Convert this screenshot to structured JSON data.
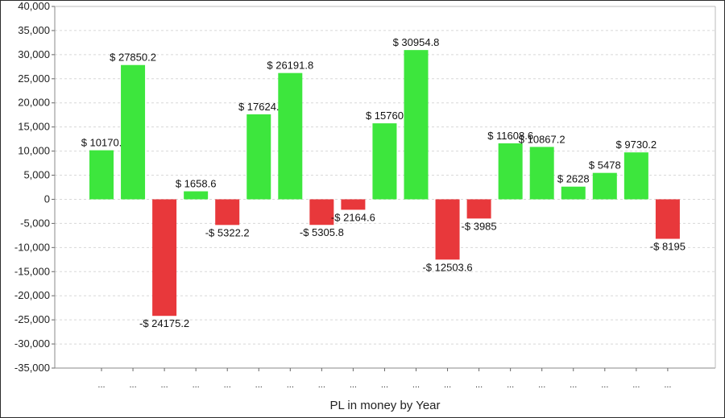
{
  "chart_data": {
    "type": "bar",
    "title": "",
    "xlabel": "PL in money by Year",
    "ylabel": "",
    "ylim": [
      -35000,
      40000
    ],
    "ytick_step": 5000,
    "categories": [
      "...",
      "...",
      "...",
      "...",
      "...",
      "...",
      "...",
      "...",
      "...",
      "...",
      "...",
      "...",
      "...",
      "...",
      "...",
      "...",
      "...",
      "...",
      "..."
    ],
    "values": [
      10170,
      27850.2,
      -24175.2,
      1658.6,
      -5322.2,
      17624,
      26191.8,
      -5305.8,
      -2164.6,
      15760,
      30954.8,
      -12503.6,
      -3985,
      11608.6,
      10867.2,
      2628,
      5478,
      9730.2,
      -8195
    ],
    "data_labels": [
      "$ 10170.",
      "$ 27850.2",
      "-$ 24175.2",
      "$ 1658.6",
      "-$ 5322.2",
      "$ 17624.",
      "$ 26191.8",
      "-$ 5305.8",
      "-$ 2164.6",
      "$ 15760",
      "$ 30954.8",
      "-$ 12503.6",
      "-$ 3985",
      "$ 11608.6",
      "$ 10867.2",
      "$ 2628",
      "$ 5478",
      "$ 9730.2",
      "-$ 8195"
    ],
    "grid": true,
    "legend": "none",
    "colors": {
      "positive": "#3de63d",
      "negative": "#e8383b"
    }
  }
}
